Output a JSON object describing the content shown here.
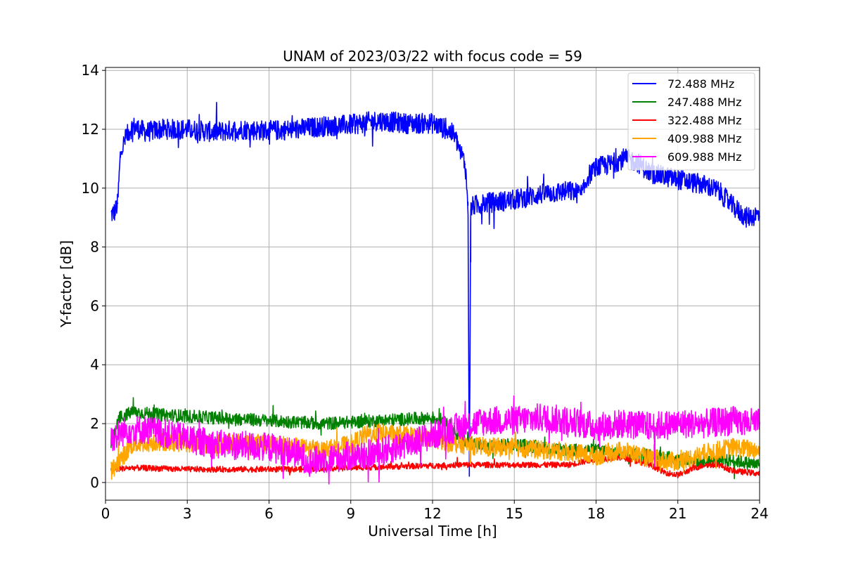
{
  "chart_data": {
    "type": "line",
    "title": "UNAM of 2023/03/22 with focus code = 59",
    "xlabel": "Universal Time [h]",
    "ylabel": "Y-factor [dB]",
    "xlim": [
      0,
      24
    ],
    "ylim": [
      -0.6,
      14.1
    ],
    "xticks": [
      0,
      3,
      6,
      9,
      12,
      15,
      18,
      21,
      24
    ],
    "yticks": [
      0,
      2,
      4,
      6,
      8,
      10,
      12,
      14
    ],
    "grid": true,
    "legend_position": "top-right",
    "series": [
      {
        "name": " 72.488 MHz",
        "color": "#0000ff",
        "noise": 0.35,
        "x": [
          0.2,
          0.35,
          0.45,
          0.55,
          0.7,
          0.85,
          1.0,
          1.5,
          2.0,
          3.0,
          4.0,
          5.0,
          6.0,
          7.0,
          8.0,
          9.0,
          10.0,
          11.0,
          12.0,
          12.5,
          12.8,
          13.0,
          13.2,
          13.3,
          13.35,
          13.4,
          13.5,
          14.0,
          15.0,
          16.0,
          17.0,
          17.5,
          17.7,
          18.0,
          18.5,
          19.0,
          19.5,
          20.0,
          21.0,
          22.0,
          22.5,
          23.0,
          23.5,
          24.0
        ],
        "y": [
          9.1,
          9.2,
          9.5,
          11.2,
          11.6,
          11.9,
          12.1,
          11.9,
          12.0,
          12.0,
          11.9,
          12.0,
          11.95,
          12.0,
          12.1,
          12.15,
          12.3,
          12.2,
          12.2,
          12.0,
          11.8,
          11.3,
          10.8,
          9.4,
          0.2,
          9.3,
          9.4,
          9.5,
          9.6,
          9.8,
          9.9,
          9.8,
          10.4,
          10.7,
          10.8,
          11.0,
          10.9,
          10.5,
          10.3,
          10.1,
          9.9,
          9.4,
          9.0,
          9.1
        ]
      },
      {
        "name": "247.488 MHz",
        "color": "#008000",
        "noise": 0.22,
        "x": [
          0.2,
          0.5,
          1.0,
          2.0,
          3.0,
          4.0,
          5.0,
          6.0,
          7.0,
          8.0,
          9.0,
          10.0,
          11.0,
          12.0,
          12.5,
          13.0,
          14.0,
          15.0,
          16.0,
          17.0,
          18.0,
          19.0,
          20.0,
          21.0,
          22.0,
          23.0,
          24.0
        ],
        "y": [
          1.2,
          2.2,
          2.4,
          2.3,
          2.25,
          2.2,
          2.15,
          2.1,
          2.05,
          2.0,
          2.05,
          2.1,
          2.15,
          2.2,
          2.1,
          1.5,
          1.2,
          1.3,
          1.2,
          1.1,
          1.1,
          1.0,
          0.95,
          0.8,
          0.7,
          0.75,
          0.6
        ]
      },
      {
        "name": "322.488 MHz",
        "color": "#ff0000",
        "noise": 0.1,
        "x": [
          0.2,
          1.0,
          3.0,
          5.0,
          7.0,
          9.0,
          11.0,
          13.0,
          15.0,
          17.0,
          18.0,
          19.0,
          20.0,
          20.5,
          21.0,
          21.5,
          22.0,
          22.5,
          23.0,
          24.0
        ],
        "y": [
          0.45,
          0.5,
          0.45,
          0.45,
          0.45,
          0.5,
          0.55,
          0.6,
          0.6,
          0.6,
          0.8,
          0.85,
          0.6,
          0.35,
          0.25,
          0.45,
          0.6,
          0.6,
          0.4,
          0.3
        ]
      },
      {
        "name": "409.988 MHz",
        "color": "#ffa500",
        "noise": 0.32,
        "x": [
          0.2,
          1.0,
          2.0,
          3.0,
          4.0,
          5.0,
          6.0,
          7.0,
          8.0,
          9.0,
          9.5,
          10.0,
          11.0,
          12.0,
          13.0,
          14.0,
          15.0,
          16.0,
          17.0,
          18.0,
          19.0,
          20.0,
          21.0,
          22.0,
          23.0,
          24.0
        ],
        "y": [
          0.4,
          1.3,
          1.4,
          1.35,
          1.3,
          1.35,
          1.3,
          1.2,
          1.1,
          1.3,
          1.6,
          1.7,
          1.6,
          1.5,
          1.3,
          1.2,
          1.2,
          1.1,
          1.05,
          0.9,
          1.1,
          0.8,
          0.7,
          1.0,
          1.2,
          1.1
        ]
      },
      {
        "name": "609.988 MHz",
        "color": "#ff00ff",
        "noise": 0.5,
        "x": [
          0.2,
          0.8,
          1.5,
          3.0,
          4.0,
          5.0,
          6.0,
          7.0,
          7.5,
          8.0,
          9.0,
          10.0,
          11.0,
          12.0,
          13.0,
          14.0,
          15.0,
          16.0,
          17.0,
          18.0,
          19.0,
          20.0,
          21.0,
          22.0,
          23.0,
          24.0
        ],
        "y": [
          1.5,
          1.8,
          1.8,
          1.5,
          1.3,
          1.25,
          1.2,
          1.0,
          0.7,
          0.8,
          0.9,
          1.0,
          1.3,
          1.6,
          1.9,
          2.1,
          2.1,
          2.2,
          2.1,
          1.9,
          2.0,
          1.9,
          2.0,
          2.0,
          2.1,
          2.0
        ]
      }
    ]
  }
}
